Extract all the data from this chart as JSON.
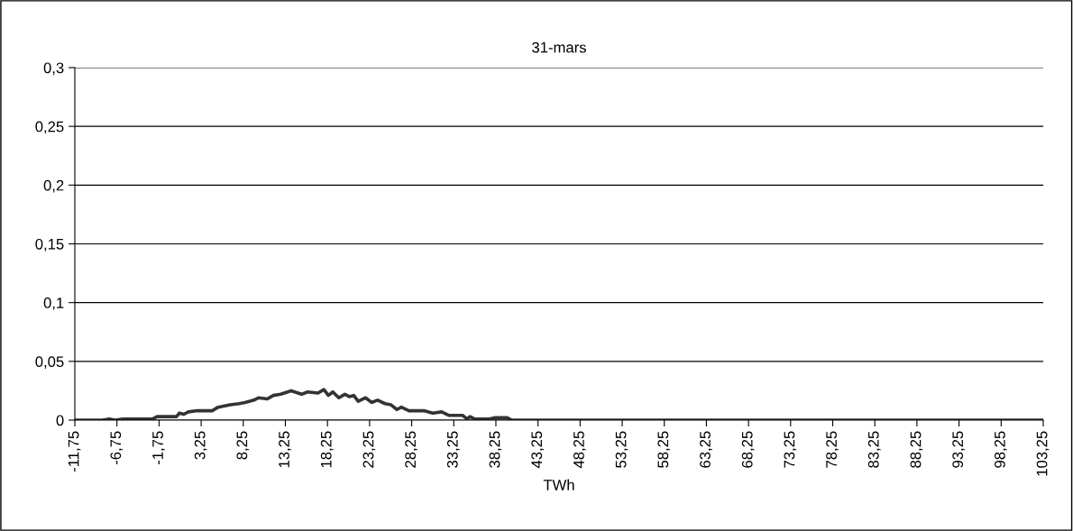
{
  "chart_data": {
    "type": "line",
    "title": "31-mars",
    "xlabel": "TWh",
    "series": [
      {
        "color": "#333333",
        "x": [
          -11.75,
          -8.5,
          -7.65,
          -7.0,
          -6.05,
          -2.5,
          -1.98,
          0.32,
          0.67,
          1.2,
          1.73,
          2.79,
          4.56,
          5.27,
          6.69,
          7.75,
          8.45,
          9.52,
          10.05,
          11.11,
          11.82,
          12.7,
          13.94,
          15.18,
          15.89,
          17.12,
          17.83,
          18.36,
          18.89,
          19.6,
          20.31,
          20.84,
          21.37,
          21.9,
          22.78,
          23.49,
          24.2,
          25.09,
          25.8,
          26.5,
          27.03,
          27.92,
          29.68,
          30.75,
          31.81,
          32.7,
          34.29,
          34.82,
          35.17,
          35.7,
          37.47,
          38.18,
          39.6,
          40.13,
          103.25
        ],
        "values": [
          0,
          0,
          0.001,
          0,
          0.001,
          0.001,
          0.003,
          0.003,
          0.006,
          0.005,
          0.007,
          0.008,
          0.008,
          0.011,
          0.013,
          0.014,
          0.015,
          0.017,
          0.019,
          0.018,
          0.021,
          0.022,
          0.025,
          0.022,
          0.024,
          0.023,
          0.026,
          0.021,
          0.024,
          0.019,
          0.022,
          0.02,
          0.021,
          0.016,
          0.019,
          0.015,
          0.017,
          0.014,
          0.013,
          0.009,
          0.011,
          0.008,
          0.008,
          0.006,
          0.007,
          0.004,
          0.004,
          0.001,
          0.003,
          0.001,
          0.001,
          0.002,
          0.002,
          0,
          0
        ]
      }
    ],
    "xlim": [
      -11.75,
      103.25
    ],
    "xticks": [
      {
        "value": -11.75,
        "label": "-11,75"
      },
      {
        "value": -6.75,
        "label": "-6,75"
      },
      {
        "value": -1.75,
        "label": "-1,75"
      },
      {
        "value": 3.25,
        "label": "3,25"
      },
      {
        "value": 8.25,
        "label": "8,25"
      },
      {
        "value": 13.25,
        "label": "13,25"
      },
      {
        "value": 18.25,
        "label": "18,25"
      },
      {
        "value": 23.25,
        "label": "23,25"
      },
      {
        "value": 28.25,
        "label": "28,25"
      },
      {
        "value": 33.25,
        "label": "33,25"
      },
      {
        "value": 38.25,
        "label": "38,25"
      },
      {
        "value": 43.25,
        "label": "43,25"
      },
      {
        "value": 48.25,
        "label": "48,25"
      },
      {
        "value": 53.25,
        "label": "53,25"
      },
      {
        "value": 58.25,
        "label": "58,25"
      },
      {
        "value": 63.25,
        "label": "63,25"
      },
      {
        "value": 68.25,
        "label": "68,25"
      },
      {
        "value": 73.25,
        "label": "73,25"
      },
      {
        "value": 78.25,
        "label": "78,25"
      },
      {
        "value": 83.25,
        "label": "83,25"
      },
      {
        "value": 88.25,
        "label": "88,25"
      },
      {
        "value": 93.25,
        "label": "93,25"
      },
      {
        "value": 98.25,
        "label": "98,25"
      },
      {
        "value": 103.25,
        "label": "103,25"
      }
    ],
    "ylim": [
      0,
      0.3
    ],
    "yticks": [
      0,
      {
        "value": 0.05,
        "label": "0,05"
      },
      {
        "value": 0.1,
        "label": "0,1"
      },
      {
        "value": 0.15,
        "label": "0,15"
      },
      {
        "value": 0.2,
        "label": "0,2"
      },
      {
        "value": 0.25,
        "label": "0,25"
      },
      {
        "value": 0.3,
        "label": "0,3"
      }
    ],
    "grid": "y",
    "marker": "none",
    "line_style": "solid"
  }
}
